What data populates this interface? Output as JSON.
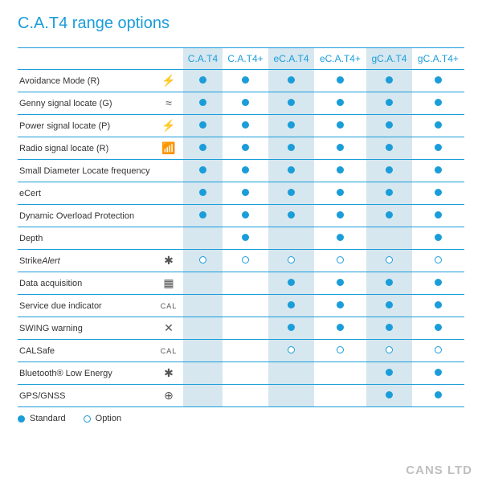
{
  "title": "C.A.T4 range options",
  "colors": {
    "accent": "#1a9dd9",
    "band": "#d6e7f0",
    "text": "#333333",
    "watermark": "#bfbfbf"
  },
  "columns": [
    "C.A.T4",
    "C.A.T4+",
    "eC.A.T4",
    "eC.A.T4+",
    "gC.A.T4",
    "gC.A.T4+"
  ],
  "banded_cols": [
    0,
    2,
    4
  ],
  "features": [
    {
      "label": "Avoidance Mode (R)",
      "icon": "⚡",
      "cells": [
        "std",
        "std",
        "std",
        "std",
        "std",
        "std"
      ]
    },
    {
      "label": "Genny signal locate (G)",
      "icon": "≈",
      "cells": [
        "std",
        "std",
        "std",
        "std",
        "std",
        "std"
      ]
    },
    {
      "label": "Power signal locate (P)",
      "icon": "⚡",
      "cells": [
        "std",
        "std",
        "std",
        "std",
        "std",
        "std"
      ]
    },
    {
      "label": "Radio signal locate (R)",
      "icon": "📶",
      "cells": [
        "std",
        "std",
        "std",
        "std",
        "std",
        "std"
      ]
    },
    {
      "label": "Small Diameter Locate frequency",
      "icon": "",
      "cells": [
        "std",
        "std",
        "std",
        "std",
        "std",
        "std"
      ]
    },
    {
      "label": "eCert",
      "icon": "",
      "cells": [
        "std",
        "std",
        "std",
        "std",
        "std",
        "std"
      ]
    },
    {
      "label": "Dynamic Overload Protection",
      "icon": "",
      "cells": [
        "std",
        "std",
        "std",
        "std",
        "std",
        "std"
      ]
    },
    {
      "label": "Depth",
      "icon": "",
      "cells": [
        "",
        "std",
        "",
        "std",
        "",
        "std"
      ]
    },
    {
      "label": "StrikeAlert",
      "italicSuffix": "Alert",
      "labelPrefix": "Strike",
      "icon": "✱",
      "cells": [
        "opt",
        "opt",
        "opt",
        "opt",
        "opt",
        "opt"
      ]
    },
    {
      "label": "Data acquisition",
      "icon": "▦",
      "cells": [
        "",
        "",
        "std",
        "std",
        "std",
        "std"
      ]
    },
    {
      "label": "Service due indicator",
      "icon": "CAL",
      "iconStyle": "small",
      "cells": [
        "",
        "",
        "std",
        "std",
        "std",
        "std"
      ]
    },
    {
      "label": "SWING warning",
      "icon": "✕",
      "cells": [
        "",
        "",
        "std",
        "std",
        "std",
        "std"
      ]
    },
    {
      "label": "CALSafe",
      "icon": "CAL",
      "iconStyle": "small",
      "cells": [
        "",
        "",
        "opt",
        "opt",
        "opt",
        "opt"
      ]
    },
    {
      "label": "Bluetooth® Low Energy",
      "icon": "✱",
      "cells": [
        "",
        "",
        "",
        "",
        "std",
        "std"
      ]
    },
    {
      "label": "GPS/GNSS",
      "icon": "⊕",
      "cells": [
        "",
        "",
        "",
        "",
        "std",
        "std"
      ]
    }
  ],
  "legend": {
    "standard": "Standard",
    "option": "Option"
  },
  "watermark": "CANS LTD"
}
